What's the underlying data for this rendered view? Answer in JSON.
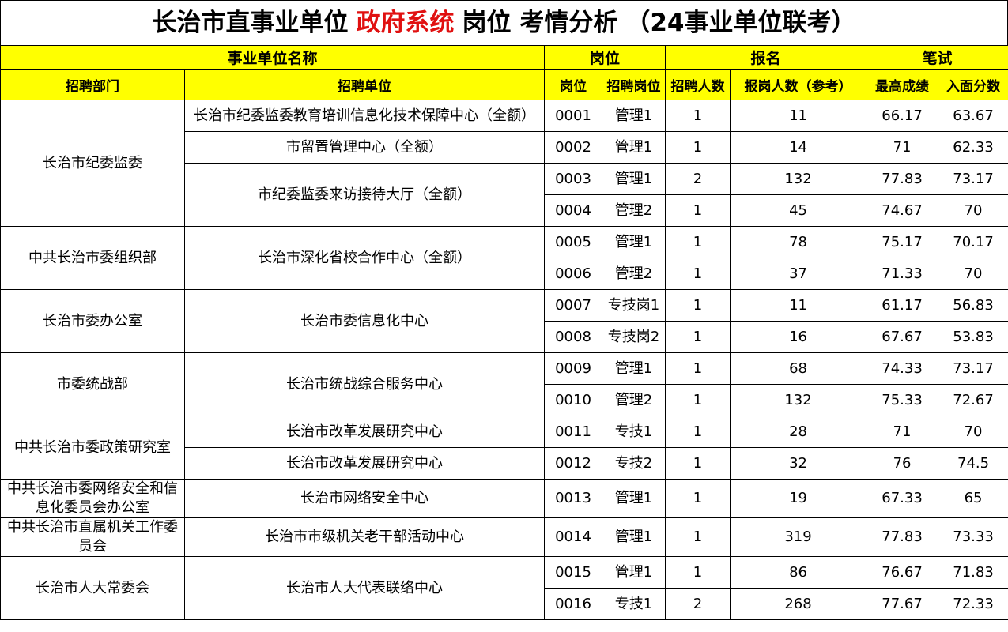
{
  "title": {
    "parts": [
      "长治市直事业单位",
      "政府系统",
      "岗位 考情分析",
      "（24事业单位联考）"
    ]
  },
  "header": {
    "groups": [
      "事业单位名称",
      "岗位",
      "报名",
      "笔试"
    ],
    "columns": [
      "招聘部门",
      "招聘单位",
      "岗位",
      "招聘岗位",
      "招聘人数",
      "报岗人数（参考）",
      "最高成绩",
      "入面分数"
    ]
  },
  "departments": [
    {
      "name": "长治市纪委监委",
      "units": [
        {
          "name": "长治市纪委监委教育培训信息化技术保障中心（全额）",
          "posts": [
            {
              "code": "0001",
              "position": "管理1",
              "hires": 1,
              "applicants": 11,
              "max_score": 66.17,
              "interview_score": 63.67
            }
          ]
        },
        {
          "name": "市留置管理中心（全额）",
          "posts": [
            {
              "code": "0002",
              "position": "管理1",
              "hires": 1,
              "applicants": 14,
              "max_score": 71,
              "interview_score": 62.33
            }
          ]
        },
        {
          "name": "市纪委监委来访接待大厅（全额）",
          "posts": [
            {
              "code": "0003",
              "position": "管理1",
              "hires": 2,
              "applicants": 132,
              "max_score": 77.83,
              "interview_score": 73.17
            },
            {
              "code": "0004",
              "position": "管理2",
              "hires": 1,
              "applicants": 45,
              "max_score": 74.67,
              "interview_score": 70
            }
          ]
        }
      ]
    },
    {
      "name": "中共长治市委组织部",
      "units": [
        {
          "name": "长治市深化省校合作中心（全额）",
          "posts": [
            {
              "code": "0005",
              "position": "管理1",
              "hires": 1,
              "applicants": 78,
              "max_score": 75.17,
              "interview_score": 70.17
            },
            {
              "code": "0006",
              "position": "管理2",
              "hires": 1,
              "applicants": 37,
              "max_score": 71.33,
              "interview_score": 70
            }
          ]
        }
      ]
    },
    {
      "name": "长治市委办公室",
      "units": [
        {
          "name": "长治市委信息化中心",
          "posts": [
            {
              "code": "0007",
              "position": "专技岗1",
              "hires": 1,
              "applicants": 11,
              "max_score": 61.17,
              "interview_score": 56.83
            },
            {
              "code": "0008",
              "position": "专技岗2",
              "hires": 1,
              "applicants": 16,
              "max_score": 67.67,
              "interview_score": 53.83
            }
          ]
        }
      ]
    },
    {
      "name": "市委统战部",
      "units": [
        {
          "name": "长治市统战综合服务中心",
          "posts": [
            {
              "code": "0009",
              "position": "管理1",
              "hires": 1,
              "applicants": 68,
              "max_score": 74.33,
              "interview_score": 73.17
            },
            {
              "code": "0010",
              "position": "管理2",
              "hires": 1,
              "applicants": 132,
              "max_score": 75.33,
              "interview_score": 72.67
            }
          ]
        }
      ]
    },
    {
      "name": "中共长治市委政策研究室",
      "units": [
        {
          "name": "长治市改革发展研究中心",
          "posts": [
            {
              "code": "0011",
              "position": "专技1",
              "hires": 1,
              "applicants": 28,
              "max_score": 71,
              "interview_score": 70
            }
          ]
        },
        {
          "name": "长治市改革发展研究中心",
          "posts": [
            {
              "code": "0012",
              "position": "专技2",
              "hires": 1,
              "applicants": 32,
              "max_score": 76,
              "interview_score": 74.5
            }
          ]
        }
      ]
    },
    {
      "name": "中共长治市委网络安全和信息化委员会办公室",
      "units": [
        {
          "name": "长治市网络安全中心",
          "posts": [
            {
              "code": "0013",
              "position": "管理1",
              "hires": 1,
              "applicants": 19,
              "max_score": 67.33,
              "interview_score": 65
            }
          ]
        }
      ]
    },
    {
      "name": "中共长治市直属机关工作委员会",
      "units": [
        {
          "name": "长治市市级机关老干部活动中心",
          "posts": [
            {
              "code": "0014",
              "position": "管理1",
              "hires": 1,
              "applicants": 319,
              "max_score": 77.83,
              "interview_score": 73.33
            }
          ]
        }
      ]
    },
    {
      "name": "长治市人大常委会",
      "units": [
        {
          "name": "长治市人大代表联络中心",
          "posts": [
            {
              "code": "0015",
              "position": "管理1",
              "hires": 1,
              "applicants": 86,
              "max_score": 76.67,
              "interview_score": 71.83
            },
            {
              "code": "0016",
              "position": "专技1",
              "hires": 2,
              "applicants": 268,
              "max_score": 77.67,
              "interview_score": 72.33
            }
          ]
        }
      ]
    }
  ]
}
